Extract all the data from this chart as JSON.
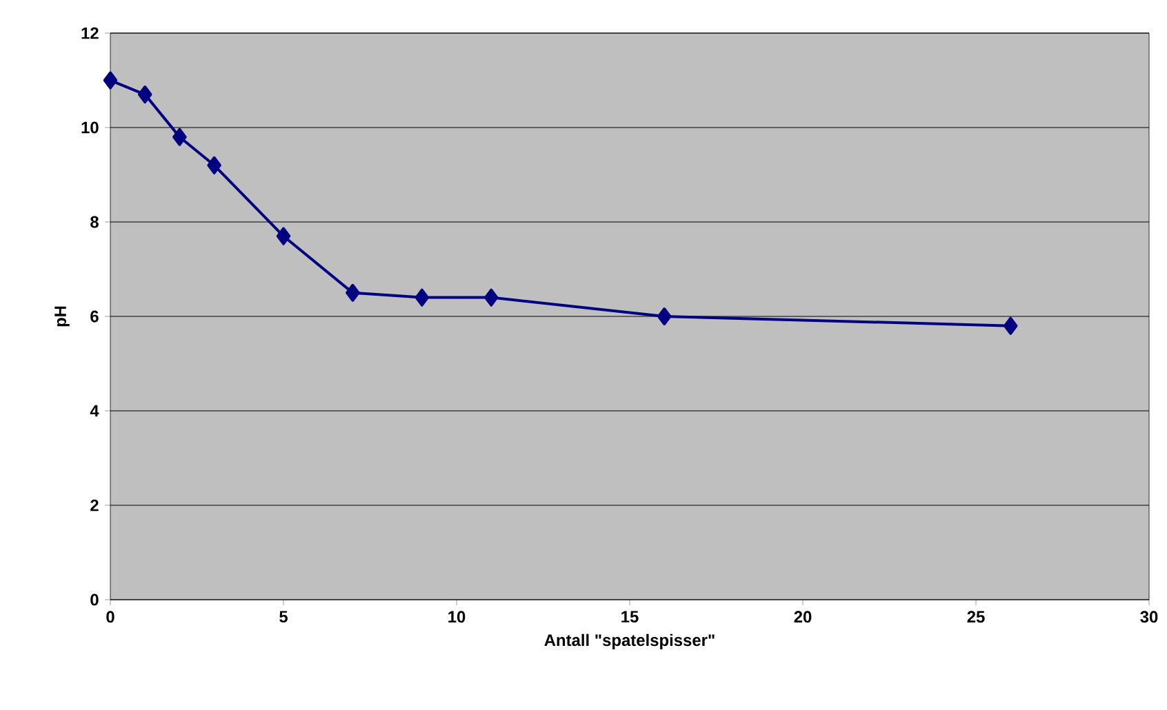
{
  "chart_data": {
    "type": "line",
    "xlabel": "Antall \"spatelspisser\"",
    "ylabel": "pH",
    "x": [
      0,
      1,
      2,
      3,
      5,
      7,
      9,
      11,
      16,
      26
    ],
    "series": [
      {
        "color": "#000080",
        "values": [
          11,
          10.7,
          9.8,
          9.2,
          7.7,
          6.5,
          6.4,
          6.4,
          6.0,
          5.8
        ]
      }
    ],
    "xlim": [
      0,
      30
    ],
    "xticks": [
      0,
      5,
      10,
      15,
      20,
      25,
      30
    ],
    "ylim": [
      0,
      12
    ],
    "yticks": [
      0,
      2,
      4,
      6,
      8,
      10,
      12
    ],
    "grid": "y",
    "marker": "diamond",
    "line_style": "solid"
  }
}
